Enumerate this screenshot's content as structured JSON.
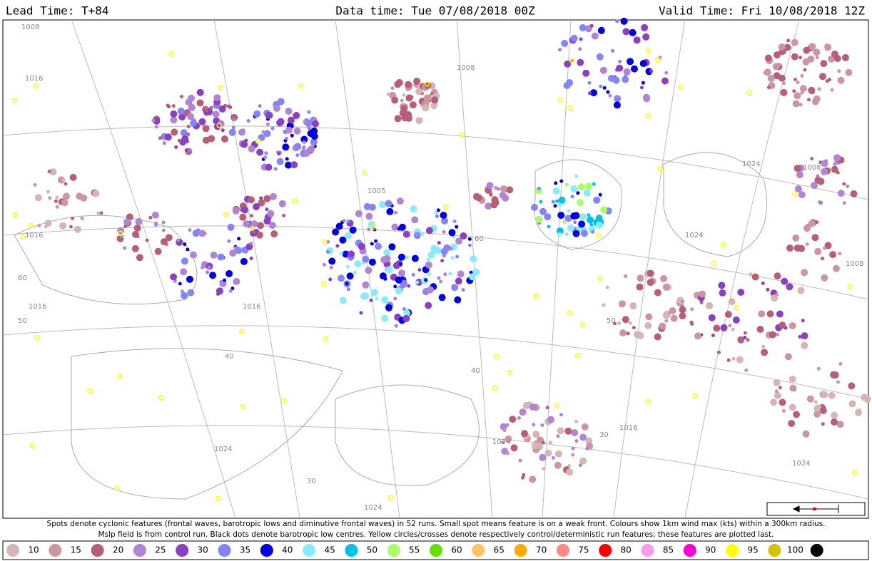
{
  "header": {
    "lead_time": "Lead Time: T+84",
    "data_time": "Data time:  Tue 07/08/2018 00Z",
    "valid_time": "Valid Time: Fri 10/08/2018 12Z"
  },
  "caption": [
    "Spots denote cyclonic features (frontal waves, barotropic lows and diminutive frontal waves) in 52 runs. Small spot means feature is on a weak front. Colours show 1km wind max (kts) within a 300km radius.",
    "Mslp field is from control run. Black dots denote barotropic low centres. Yellow circles/crosses denote respectively control/deterministic run features; these features are plotted last."
  ],
  "map": {
    "isobar_labels": [
      "1008",
      "1016",
      "1016",
      "1016",
      "1008",
      "1005",
      "1024",
      "1024",
      "1024",
      "1016",
      "1008",
      "1016",
      "1008",
      "1024",
      "1024",
      "1024"
    ],
    "latitude_labels": [
      "60",
      "50",
      "40",
      "30",
      "60",
      "50",
      "40",
      "30"
    ]
  },
  "legend": {
    "labels": [
      10,
      15,
      20,
      25,
      30,
      35,
      40,
      45,
      50,
      55,
      60,
      65,
      70,
      75,
      80,
      85,
      90,
      95,
      100
    ],
    "colors": [
      "#d6b5b8",
      "#cc96a1",
      "#b65f77",
      "#b085d6",
      "#8b3fc2",
      "#8484ff",
      "#0000e6",
      "#88ecff",
      "#00c2e6",
      "#aaff66",
      "#66e000",
      "#ffc466",
      "#ffaa00",
      "#ff8888",
      "#ff0000",
      "#ff99ee",
      "#ff00d4",
      "#ffff00",
      "#d6c200",
      "#000000"
    ]
  }
}
